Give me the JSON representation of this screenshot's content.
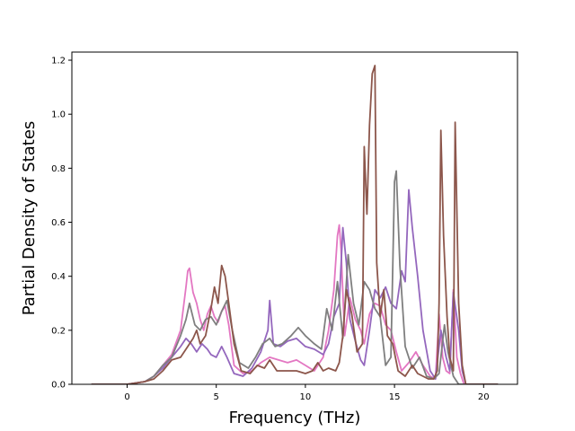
{
  "chart_data": {
    "type": "line",
    "title": "",
    "xlabel": "Frequency (THz)",
    "ylabel": "Partial Density of States",
    "xlim": [
      -3.1,
      21.9
    ],
    "ylim": [
      0.0,
      1.23
    ],
    "xticks": [
      0,
      5,
      10,
      15,
      20
    ],
    "xtick_labels": [
      "0",
      "5",
      "10",
      "15",
      "20"
    ],
    "yticks": [
      0.0,
      0.2,
      0.4,
      0.6,
      0.8,
      1.0,
      1.2
    ],
    "ytick_labels": [
      "0.0",
      "0.2",
      "0.4",
      "0.6",
      "0.8",
      "1.0",
      "1.2"
    ],
    "grid": false,
    "legend": "none",
    "series": [
      {
        "color": "#e377c2",
        "points": [
          [
            -2.0,
            0.0
          ],
          [
            0.0,
            0.0
          ],
          [
            1.0,
            0.01
          ],
          [
            1.5,
            0.03
          ],
          [
            2.0,
            0.07
          ],
          [
            2.5,
            0.11
          ],
          [
            3.0,
            0.2
          ],
          [
            3.3,
            0.36
          ],
          [
            3.4,
            0.42
          ],
          [
            3.5,
            0.43
          ],
          [
            3.7,
            0.34
          ],
          [
            3.9,
            0.3
          ],
          [
            4.1,
            0.24
          ],
          [
            4.3,
            0.2
          ],
          [
            4.5,
            0.26
          ],
          [
            4.7,
            0.29
          ],
          [
            4.9,
            0.25
          ],
          [
            5.1,
            0.23
          ],
          [
            5.3,
            0.27
          ],
          [
            5.5,
            0.29
          ],
          [
            5.7,
            0.22
          ],
          [
            6.0,
            0.07
          ],
          [
            6.5,
            0.04
          ],
          [
            7.0,
            0.05
          ],
          [
            7.5,
            0.08
          ],
          [
            8.0,
            0.1
          ],
          [
            8.5,
            0.09
          ],
          [
            9.0,
            0.08
          ],
          [
            9.5,
            0.09
          ],
          [
            10.0,
            0.07
          ],
          [
            10.5,
            0.05
          ],
          [
            11.0,
            0.1
          ],
          [
            11.3,
            0.2
          ],
          [
            11.6,
            0.35
          ],
          [
            11.8,
            0.55
          ],
          [
            11.9,
            0.59
          ],
          [
            12.0,
            0.5
          ],
          [
            12.2,
            0.18
          ],
          [
            12.5,
            0.32
          ],
          [
            12.8,
            0.24
          ],
          [
            13.1,
            0.2
          ],
          [
            13.3,
            0.15
          ],
          [
            13.6,
            0.26
          ],
          [
            13.9,
            0.3
          ],
          [
            14.2,
            0.29
          ],
          [
            14.5,
            0.22
          ],
          [
            14.8,
            0.2
          ],
          [
            15.1,
            0.12
          ],
          [
            15.4,
            0.05
          ],
          [
            15.8,
            0.08
          ],
          [
            16.2,
            0.12
          ],
          [
            16.6,
            0.07
          ],
          [
            17.0,
            0.03
          ],
          [
            17.3,
            0.02
          ],
          [
            17.5,
            0.26
          ],
          [
            17.7,
            0.1
          ],
          [
            17.9,
            0.05
          ],
          [
            18.1,
            0.04
          ],
          [
            18.3,
            0.35
          ],
          [
            18.5,
            0.1
          ],
          [
            18.7,
            0.04
          ],
          [
            18.9,
            0.0
          ],
          [
            20.8,
            0.0
          ]
        ]
      },
      {
        "color": "#9467bd",
        "points": [
          [
            -2.0,
            0.0
          ],
          [
            0.0,
            0.0
          ],
          [
            1.0,
            0.01
          ],
          [
            1.5,
            0.03
          ],
          [
            2.0,
            0.06
          ],
          [
            2.5,
            0.1
          ],
          [
            3.0,
            0.14
          ],
          [
            3.3,
            0.17
          ],
          [
            3.6,
            0.15
          ],
          [
            3.9,
            0.12
          ],
          [
            4.2,
            0.15
          ],
          [
            4.5,
            0.13
          ],
          [
            4.7,
            0.11
          ],
          [
            5.0,
            0.1
          ],
          [
            5.3,
            0.14
          ],
          [
            5.6,
            0.1
          ],
          [
            6.0,
            0.04
          ],
          [
            6.5,
            0.03
          ],
          [
            7.0,
            0.06
          ],
          [
            7.5,
            0.12
          ],
          [
            7.9,
            0.2
          ],
          [
            8.0,
            0.31
          ],
          [
            8.2,
            0.15
          ],
          [
            8.6,
            0.14
          ],
          [
            9.0,
            0.16
          ],
          [
            9.5,
            0.17
          ],
          [
            10.0,
            0.14
          ],
          [
            10.5,
            0.13
          ],
          [
            11.0,
            0.11
          ],
          [
            11.3,
            0.15
          ],
          [
            11.6,
            0.25
          ],
          [
            11.9,
            0.3
          ],
          [
            12.1,
            0.58
          ],
          [
            12.3,
            0.45
          ],
          [
            12.5,
            0.24
          ],
          [
            12.8,
            0.16
          ],
          [
            13.1,
            0.09
          ],
          [
            13.3,
            0.07
          ],
          [
            13.6,
            0.2
          ],
          [
            13.9,
            0.35
          ],
          [
            14.2,
            0.32
          ],
          [
            14.5,
            0.36
          ],
          [
            14.8,
            0.3
          ],
          [
            15.1,
            0.28
          ],
          [
            15.4,
            0.42
          ],
          [
            15.6,
            0.38
          ],
          [
            15.8,
            0.72
          ],
          [
            16.0,
            0.58
          ],
          [
            16.3,
            0.4
          ],
          [
            16.6,
            0.2
          ],
          [
            17.0,
            0.05
          ],
          [
            17.3,
            0.02
          ],
          [
            17.6,
            0.2
          ],
          [
            17.9,
            0.1
          ],
          [
            18.1,
            0.05
          ],
          [
            18.3,
            0.34
          ],
          [
            18.6,
            0.2
          ],
          [
            18.8,
            0.05
          ],
          [
            19.0,
            0.0
          ],
          [
            20.8,
            0.0
          ]
        ]
      },
      {
        "color": "#7f7f7f",
        "points": [
          [
            -2.0,
            0.0
          ],
          [
            0.0,
            0.0
          ],
          [
            1.0,
            0.01
          ],
          [
            1.5,
            0.03
          ],
          [
            2.0,
            0.07
          ],
          [
            2.5,
            0.1
          ],
          [
            3.0,
            0.18
          ],
          [
            3.3,
            0.24
          ],
          [
            3.5,
            0.3
          ],
          [
            3.8,
            0.22
          ],
          [
            4.1,
            0.2
          ],
          [
            4.4,
            0.24
          ],
          [
            4.7,
            0.25
          ],
          [
            5.0,
            0.22
          ],
          [
            5.3,
            0.27
          ],
          [
            5.6,
            0.31
          ],
          [
            5.9,
            0.2
          ],
          [
            6.3,
            0.08
          ],
          [
            6.8,
            0.06
          ],
          [
            7.2,
            0.1
          ],
          [
            7.6,
            0.15
          ],
          [
            8.0,
            0.17
          ],
          [
            8.3,
            0.14
          ],
          [
            8.7,
            0.15
          ],
          [
            9.2,
            0.18
          ],
          [
            9.6,
            0.21
          ],
          [
            10.0,
            0.18
          ],
          [
            10.5,
            0.15
          ],
          [
            10.9,
            0.13
          ],
          [
            11.2,
            0.28
          ],
          [
            11.5,
            0.2
          ],
          [
            11.8,
            0.38
          ],
          [
            12.1,
            0.17
          ],
          [
            12.4,
            0.48
          ],
          [
            12.7,
            0.3
          ],
          [
            13.0,
            0.22
          ],
          [
            13.3,
            0.38
          ],
          [
            13.6,
            0.35
          ],
          [
            13.9,
            0.28
          ],
          [
            14.2,
            0.25
          ],
          [
            14.5,
            0.07
          ],
          [
            14.8,
            0.1
          ],
          [
            15.0,
            0.75
          ],
          [
            15.1,
            0.79
          ],
          [
            15.3,
            0.44
          ],
          [
            15.6,
            0.14
          ],
          [
            16.0,
            0.06
          ],
          [
            16.4,
            0.1
          ],
          [
            16.8,
            0.03
          ],
          [
            17.2,
            0.02
          ],
          [
            17.5,
            0.04
          ],
          [
            17.8,
            0.22
          ],
          [
            18.0,
            0.12
          ],
          [
            18.3,
            0.03
          ],
          [
            18.6,
            0.0
          ],
          [
            20.8,
            0.0
          ]
        ]
      },
      {
        "color": "#8c564b",
        "points": [
          [
            -2.0,
            0.0
          ],
          [
            0.0,
            0.0
          ],
          [
            1.0,
            0.01
          ],
          [
            1.5,
            0.02
          ],
          [
            2.0,
            0.05
          ],
          [
            2.5,
            0.09
          ],
          [
            3.0,
            0.1
          ],
          [
            3.4,
            0.14
          ],
          [
            3.7,
            0.17
          ],
          [
            3.9,
            0.2
          ],
          [
            4.1,
            0.15
          ],
          [
            4.4,
            0.18
          ],
          [
            4.7,
            0.28
          ],
          [
            4.9,
            0.36
          ],
          [
            5.1,
            0.3
          ],
          [
            5.3,
            0.44
          ],
          [
            5.5,
            0.4
          ],
          [
            5.7,
            0.3
          ],
          [
            6.0,
            0.15
          ],
          [
            6.4,
            0.05
          ],
          [
            6.9,
            0.04
          ],
          [
            7.3,
            0.07
          ],
          [
            7.7,
            0.06
          ],
          [
            8.0,
            0.09
          ],
          [
            8.4,
            0.05
          ],
          [
            9.0,
            0.05
          ],
          [
            9.5,
            0.05
          ],
          [
            10.0,
            0.04
          ],
          [
            10.4,
            0.05
          ],
          [
            10.7,
            0.08
          ],
          [
            11.0,
            0.05
          ],
          [
            11.3,
            0.06
          ],
          [
            11.7,
            0.05
          ],
          [
            11.9,
            0.08
          ],
          [
            12.1,
            0.18
          ],
          [
            12.3,
            0.35
          ],
          [
            12.6,
            0.26
          ],
          [
            12.9,
            0.12
          ],
          [
            13.2,
            0.15
          ],
          [
            13.3,
            0.88
          ],
          [
            13.45,
            0.63
          ],
          [
            13.6,
            0.96
          ],
          [
            13.75,
            1.15
          ],
          [
            13.9,
            1.18
          ],
          [
            14.0,
            0.45
          ],
          [
            14.2,
            0.25
          ],
          [
            14.4,
            0.35
          ],
          [
            14.6,
            0.18
          ],
          [
            14.9,
            0.15
          ],
          [
            15.2,
            0.05
          ],
          [
            15.6,
            0.03
          ],
          [
            16.0,
            0.07
          ],
          [
            16.3,
            0.04
          ],
          [
            16.6,
            0.03
          ],
          [
            16.9,
            0.02
          ],
          [
            17.2,
            0.02
          ],
          [
            17.4,
            0.05
          ],
          [
            17.5,
            0.3
          ],
          [
            17.6,
            0.94
          ],
          [
            17.75,
            0.55
          ],
          [
            17.95,
            0.25
          ],
          [
            18.1,
            0.1
          ],
          [
            18.3,
            0.05
          ],
          [
            18.4,
            0.97
          ],
          [
            18.6,
            0.3
          ],
          [
            18.8,
            0.07
          ],
          [
            19.0,
            0.0
          ],
          [
            20.8,
            0.0
          ]
        ]
      }
    ]
  }
}
